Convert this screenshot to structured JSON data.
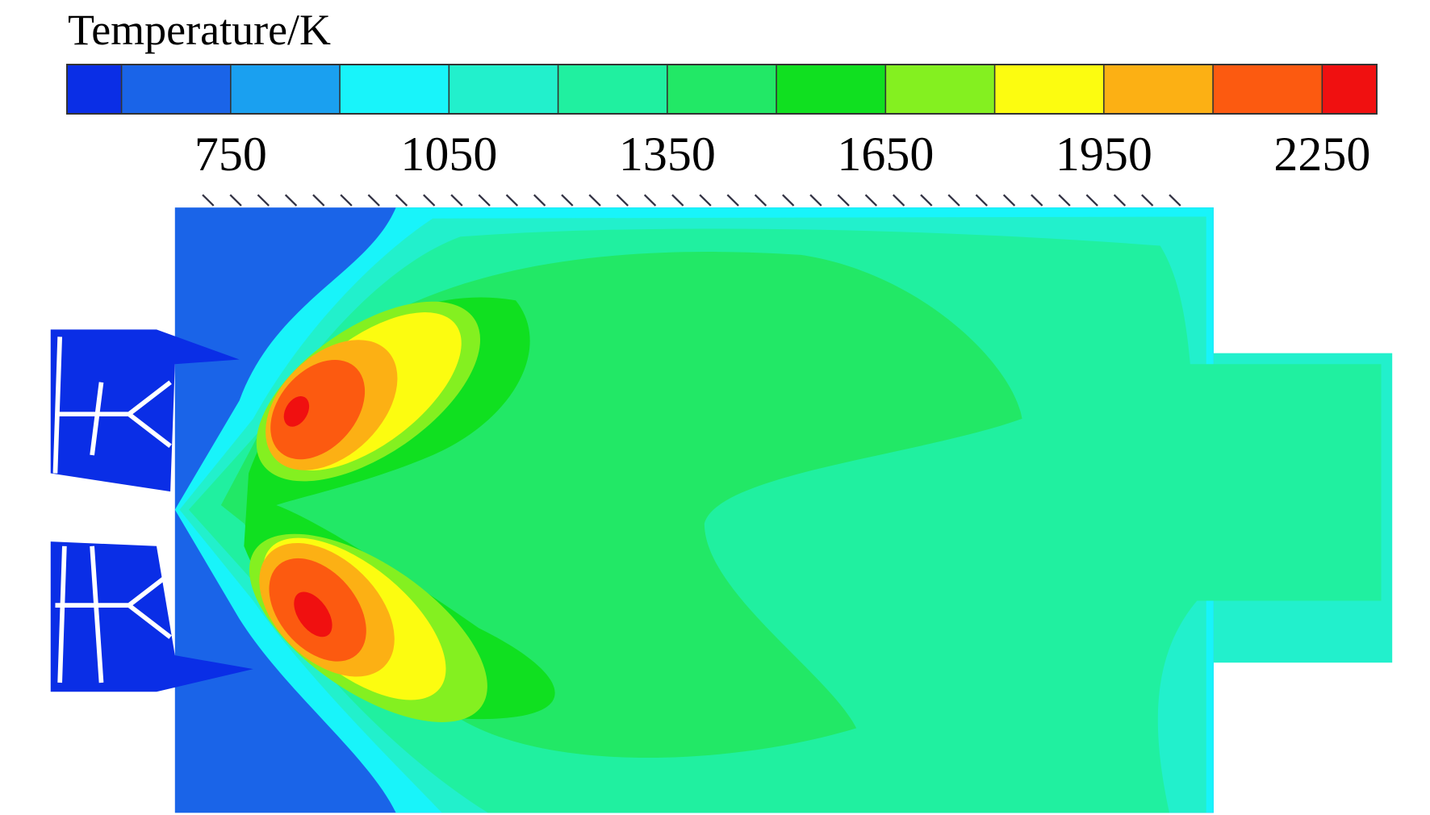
{
  "chart_data": {
    "type": "contour",
    "title": "Temperature/K",
    "levels": [
      525,
      600,
      750,
      900,
      1050,
      1200,
      1350,
      1500,
      1650,
      1800,
      1950,
      2100,
      2250,
      2325
    ],
    "colors": [
      "#0a2ee6",
      "#1a64e8",
      "#1aa0f0",
      "#18f4fa",
      "#22f0cc",
      "#20f0a0",
      "#22e866",
      "#10e020",
      "#84f020",
      "#fcfc10",
      "#fcb014",
      "#fc5a10",
      "#f01010"
    ],
    "cticks": [
      750,
      1050,
      1350,
      1650,
      1950,
      2250
    ]
  }
}
